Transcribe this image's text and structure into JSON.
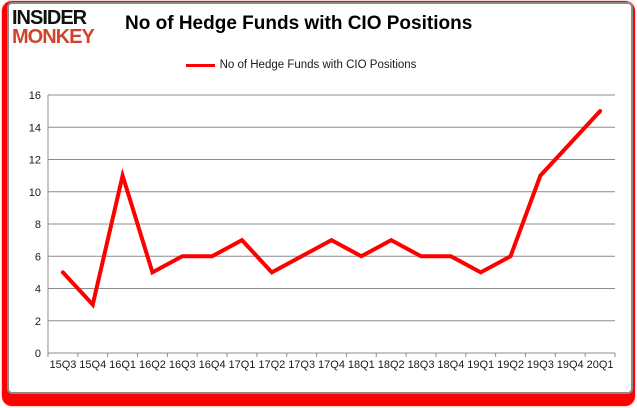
{
  "logo": {
    "line1": "INSIDER",
    "line2": "MONKEY"
  },
  "header": {
    "title": "No of Hedge Funds with CIO Positions"
  },
  "legend": {
    "label": "No of Hedge Funds with CIO Positions",
    "line_color": "#ff0000"
  },
  "chart_data": {
    "type": "line",
    "title": "No of Hedge Funds with CIO Positions",
    "xlabel": "",
    "ylabel": "",
    "categories": [
      "15Q3",
      "15Q4",
      "16Q1",
      "16Q2",
      "16Q3",
      "16Q4",
      "17Q1",
      "17Q2",
      "17Q3",
      "17Q4",
      "18Q1",
      "18Q2",
      "18Q3",
      "18Q4",
      "19Q1",
      "19Q2",
      "19Q3",
      "19Q4",
      "20Q1"
    ],
    "series": [
      {
        "name": "No of Hedge Funds with CIO Positions",
        "values": [
          5,
          3,
          11,
          5,
          6,
          6,
          7,
          5,
          6,
          7,
          6,
          7,
          6,
          6,
          5,
          6,
          11,
          13,
          15
        ],
        "color": "#ff0000"
      }
    ],
    "ylim": [
      0,
      16
    ],
    "yticks": [
      0,
      2,
      4,
      6,
      8,
      10,
      12,
      14,
      16
    ],
    "grid": true,
    "legend_position": "top-center"
  },
  "colors": {
    "line_red": "#ff0000",
    "logo_black": "#111111",
    "logo_red": "#d0442e",
    "frame_red": "#ff0000",
    "card_border": "#8a8a8a",
    "grid": "#8c8c8c",
    "axis": "#8c8c8c",
    "tick_text": "#1a1a1a"
  }
}
